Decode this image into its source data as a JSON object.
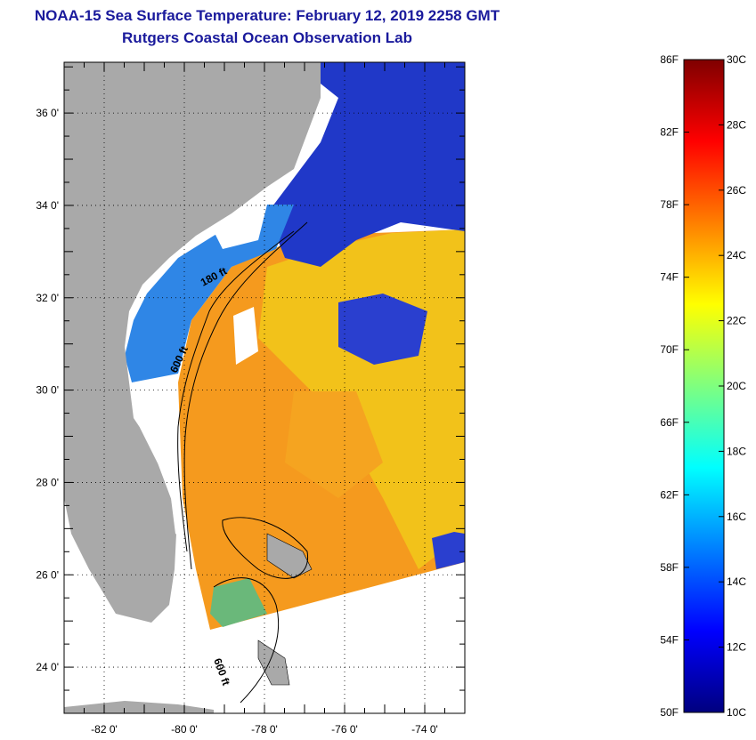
{
  "title": {
    "line1": "NOAA-15 Sea Surface Temperature:  February 12, 2019 2258 GMT",
    "line2": "Rutgers Coastal Ocean Observation Lab"
  },
  "map": {
    "lat_labels": [
      "36 0'",
      "34 0'",
      "32 0'",
      "30 0'",
      "28 0'",
      "26 0'",
      "24 0'"
    ],
    "lat_values": [
      36,
      34,
      32,
      30,
      28,
      26,
      24
    ],
    "lon_labels": [
      "-82 0'",
      "-80 0'",
      "-78 0'",
      "-76 0'",
      "-74 0'"
    ],
    "lon_values": [
      -82,
      -80,
      -78,
      -76,
      -74
    ],
    "lat_range": [
      23,
      37.1
    ],
    "lon_range": [
      -83,
      -73
    ],
    "isobath_labels": [
      "180 ft",
      "600 ft",
      "600 ft"
    ],
    "colors": {
      "land": "#a9a9a9",
      "cloud": "#ffffff",
      "warm_sst": "#f59a1e",
      "mid_sst": "#f2c21a",
      "cold_sst": "#1f3fd6",
      "coastal_sst": "#2f8fe8"
    }
  },
  "colorbar": {
    "fahrenheit_labels": [
      "86F",
      "82F",
      "78F",
      "74F",
      "70F",
      "66F",
      "62F",
      "58F",
      "54F",
      "50F"
    ],
    "fahrenheit_values": [
      86,
      82,
      78,
      74,
      70,
      66,
      62,
      58,
      54,
      50
    ],
    "celsius_labels": [
      "30C",
      "28C",
      "26C",
      "24C",
      "22C",
      "20C",
      "18C",
      "16C",
      "14C",
      "12C",
      "10C"
    ],
    "celsius_values": [
      30,
      28,
      26,
      24,
      22,
      20,
      18,
      16,
      14,
      12,
      10
    ],
    "range_c": [
      10,
      30
    ],
    "stops": [
      "#00007f",
      "#0000ff",
      "#007fff",
      "#00ffff",
      "#7fff7f",
      "#ffff00",
      "#ff7f00",
      "#ff0000",
      "#7f0000"
    ]
  }
}
